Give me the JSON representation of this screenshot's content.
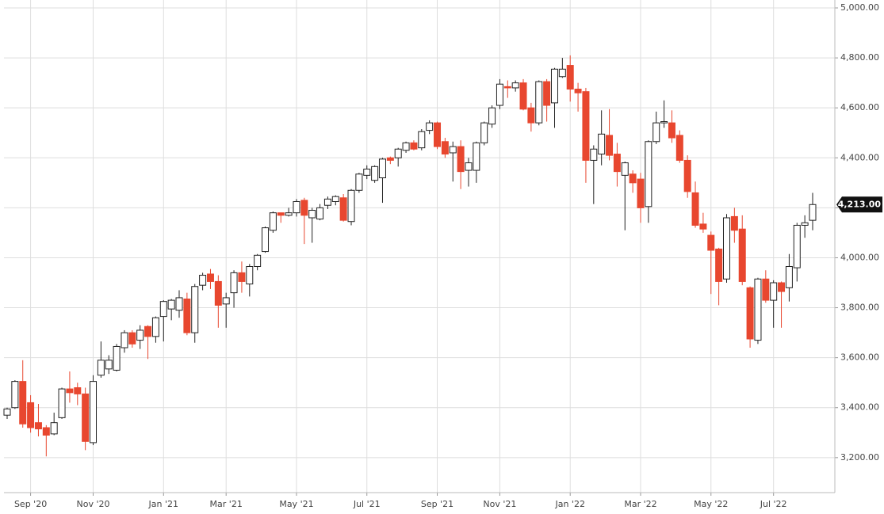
{
  "chart_data": {
    "type": "candlestick",
    "categories": [
      null,
      null,
      null,
      "Sep '20",
      null,
      null,
      null,
      null,
      null,
      null,
      null,
      "Nov '20",
      null,
      null,
      null,
      null,
      null,
      null,
      null,
      null,
      "Jan '21",
      null,
      null,
      null,
      null,
      null,
      null,
      null,
      "Mar '21",
      null,
      null,
      null,
      null,
      null,
      null,
      null,
      null,
      "May '21",
      null,
      null,
      null,
      null,
      null,
      null,
      null,
      null,
      "Jul '21",
      null,
      null,
      null,
      null,
      null,
      null,
      null,
      null,
      "Sep '21",
      null,
      null,
      null,
      null,
      null,
      null,
      null,
      "Nov '21",
      null,
      null,
      null,
      null,
      null,
      null,
      null,
      null,
      "Jan '22",
      null,
      null,
      null,
      null,
      null,
      null,
      null,
      null,
      "Mar '22",
      null,
      null,
      null,
      null,
      null,
      null,
      null,
      null,
      "May '22",
      null,
      null,
      null,
      null,
      null,
      null,
      null,
      "Jul '22",
      null,
      null,
      null,
      null,
      null
    ],
    "open": [
      3370,
      3400,
      3505,
      3420,
      3340,
      3320,
      3295,
      3360,
      3475,
      3480,
      3455,
      3260,
      3530,
      3555,
      3550,
      3640,
      3700,
      3670,
      3725,
      3685,
      3765,
      3795,
      3790,
      3835,
      3700,
      3890,
      3935,
      3905,
      3815,
      3860,
      3940,
      3895,
      3965,
      4025,
      4110,
      4180,
      4170,
      4180,
      4230,
      4160,
      4155,
      4210,
      4225,
      4240,
      4145,
      4270,
      4330,
      4310,
      4320,
      4400,
      4400,
      4430,
      4460,
      4440,
      4510,
      4540,
      4465,
      4420,
      4445,
      4350,
      4350,
      4460,
      4535,
      4610,
      4685,
      4680,
      4700,
      4600,
      4540,
      4705,
      4620,
      4725,
      4770,
      4675,
      4665,
      4390,
      4415,
      4490,
      4415,
      4330,
      4335,
      4315,
      4205,
      4465,
      4540,
      4540,
      4490,
      4390,
      4260,
      4135,
      4090,
      4035,
      3915,
      4165,
      4115,
      3880,
      3670,
      3915,
      3830,
      3900,
      3880,
      3960,
      4130,
      4150
    ],
    "high": [
      3400,
      3510,
      3590,
      3450,
      3415,
      3330,
      3380,
      3480,
      3545,
      3500,
      3480,
      3530,
      3665,
      3610,
      3655,
      3710,
      3710,
      3730,
      3730,
      3765,
      3830,
      3835,
      3870,
      3860,
      3895,
      3940,
      3955,
      3930,
      3860,
      3950,
      3985,
      3975,
      4015,
      4125,
      4185,
      4180,
      4200,
      4235,
      4240,
      4200,
      4215,
      4245,
      4250,
      4255,
      4275,
      4340,
      4370,
      4370,
      4400,
      4405,
      4440,
      4465,
      4470,
      4515,
      4550,
      4545,
      4480,
      4465,
      4470,
      4400,
      4465,
      4545,
      4610,
      4715,
      4710,
      4710,
      4715,
      4620,
      4710,
      4715,
      4760,
      4800,
      4810,
      4700,
      4680,
      4450,
      4590,
      4595,
      4460,
      4385,
      4350,
      4340,
      4470,
      4585,
      4630,
      4590,
      4510,
      4410,
      4305,
      4180,
      4105,
      4040,
      4175,
      4200,
      4170,
      3885,
      3920,
      3950,
      3910,
      3905,
      4015,
      4140,
      4170,
      4260
    ],
    "low": [
      3355,
      3395,
      3320,
      3300,
      3285,
      3205,
      3290,
      3355,
      3420,
      3410,
      3230,
      3250,
      3520,
      3535,
      3545,
      3620,
      3640,
      3635,
      3595,
      3660,
      3665,
      3750,
      3760,
      3690,
      3660,
      3870,
      3875,
      3720,
      3720,
      3800,
      3860,
      3845,
      3950,
      4020,
      4100,
      4140,
      4165,
      4165,
      4055,
      4060,
      4150,
      4195,
      4210,
      4145,
      4130,
      4260,
      4315,
      4300,
      4220,
      4375,
      4365,
      4420,
      4430,
      4430,
      4495,
      4435,
      4400,
      4305,
      4275,
      4285,
      4300,
      4450,
      4520,
      4595,
      4640,
      4665,
      4590,
      4505,
      4530,
      4545,
      4520,
      4720,
      4625,
      4585,
      4300,
      4215,
      4370,
      4390,
      4285,
      4110,
      4260,
      4140,
      4140,
      4455,
      4520,
      4460,
      4380,
      4240,
      4120,
      4100,
      3855,
      3810,
      3900,
      4060,
      3890,
      3640,
      3655,
      3820,
      3720,
      3720,
      3825,
      3905,
      4080,
      4110
    ],
    "close": [
      3395,
      3505,
      3335,
      3320,
      3315,
      3290,
      3340,
      3475,
      3460,
      3455,
      3265,
      3505,
      3590,
      3590,
      3645,
      3700,
      3655,
      3710,
      3685,
      3760,
      3825,
      3830,
      3840,
      3700,
      3885,
      3930,
      3905,
      3810,
      3840,
      3940,
      3905,
      3965,
      4010,
      4120,
      4180,
      4170,
      4180,
      4225,
      4170,
      4190,
      4200,
      4235,
      4245,
      4150,
      4270,
      4335,
      4355,
      4365,
      4395,
      4390,
      4435,
      4460,
      4435,
      4505,
      4540,
      4445,
      4415,
      4445,
      4345,
      4380,
      4460,
      4540,
      4600,
      4695,
      4680,
      4700,
      4595,
      4540,
      4705,
      4610,
      4755,
      4755,
      4675,
      4660,
      4390,
      4435,
      4495,
      4410,
      4345,
      4380,
      4300,
      4200,
      4465,
      4540,
      4545,
      4480,
      4390,
      4265,
      4130,
      4115,
      4030,
      3905,
      4160,
      4110,
      3905,
      3675,
      3915,
      3830,
      3900,
      3865,
      3965,
      4130,
      4140,
      4213
    ],
    "up_color": "#ffffff",
    "down_color": "#e8472f",
    "up_line_color": "#222222",
    "ylim": [
      3060,
      5000
    ],
    "yticks": [
      {
        "value": 3200,
        "label": "3,200.00"
      },
      {
        "value": 3400,
        "label": "3,400.00"
      },
      {
        "value": 3600,
        "label": "3,600.00"
      },
      {
        "value": 3800,
        "label": "3,800.00"
      },
      {
        "value": 4000,
        "label": "4,000.00"
      },
      {
        "value": 4200,
        "label": "4,200.00"
      },
      {
        "value": 4400,
        "label": "4,400.00"
      },
      {
        "value": 4600,
        "label": "4,600.00"
      },
      {
        "value": 4800,
        "label": "4,800.00"
      },
      {
        "value": 5000,
        "label": "5,000.00"
      }
    ],
    "last_price": {
      "value": 4213,
      "label": "4,213.00"
    },
    "grid": true
  }
}
